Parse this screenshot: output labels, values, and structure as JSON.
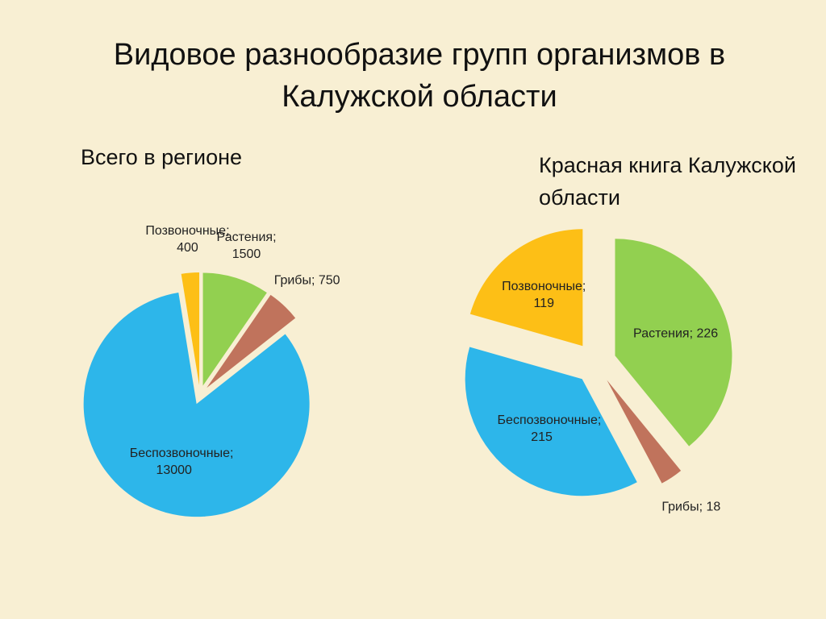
{
  "title": "Видовое разнообразие групп организмов в Калужской области",
  "chart_data": [
    {
      "type": "pie",
      "title": "Всего в регионе",
      "categories": [
        "Растения",
        "Грибы",
        "Беспозвоночные",
        "Позвоночные"
      ],
      "values": [
        1500,
        750,
        13000,
        400
      ],
      "value_labels": [
        "Растения; 1500",
        "Грибы; 750",
        "Беспозвоночные; 13000",
        "Позвоночные; 400"
      ],
      "colors": [
        "#92d050",
        "#c0735c",
        "#2db6ea",
        "#fdbf16"
      ]
    },
    {
      "type": "pie",
      "title": "Красная книга Калужской области",
      "categories": [
        "Растения",
        "Грибы",
        "Беспозвоночные",
        "Позвоночные"
      ],
      "values": [
        226,
        18,
        215,
        119
      ],
      "value_labels": [
        "Растения; 226",
        "Грибы; 18",
        "Беспозвоночные; 215",
        "Позвоночные; 119"
      ],
      "colors": [
        "#92d050",
        "#c0735c",
        "#2db6ea",
        "#fdbf16"
      ]
    }
  ]
}
